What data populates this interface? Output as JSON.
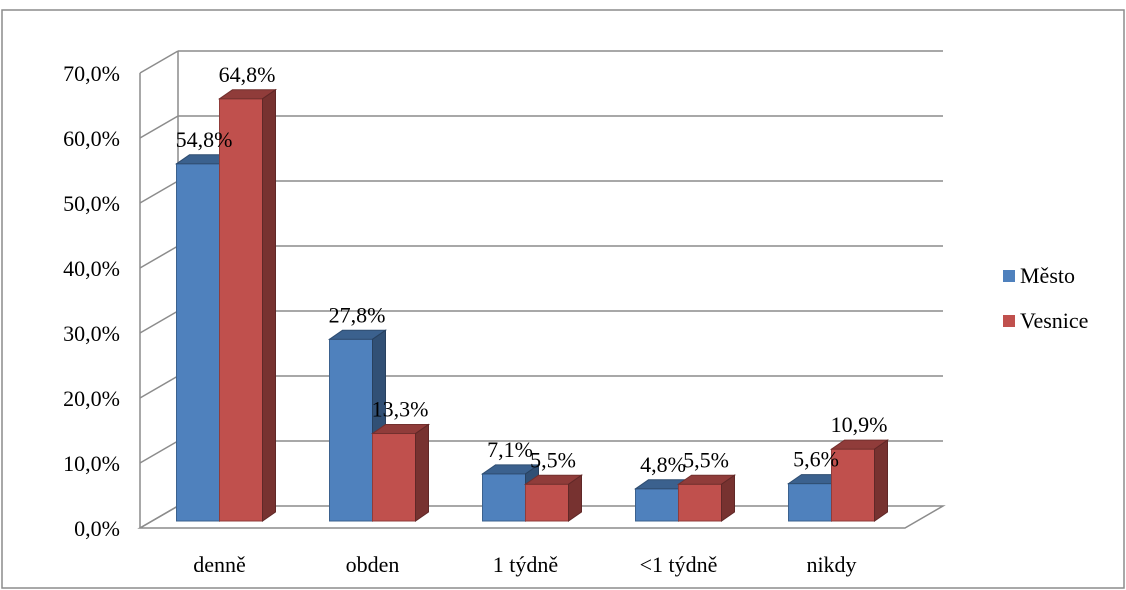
{
  "chart_data": {
    "type": "bar",
    "style": "3d-clustered-column",
    "categories": [
      "denně",
      "obden",
      "1 týdně",
      "<1 týdně",
      "nikdy"
    ],
    "series": [
      {
        "name": "Město",
        "color": "#4F81BD",
        "values": [
          54.8,
          27.8,
          7.1,
          4.8,
          5.6
        ],
        "labels": [
          "54,8%",
          "27,8%",
          "7,1%",
          "4,8%",
          "5,6%"
        ]
      },
      {
        "name": "Vesnice",
        "color": "#C0504D",
        "values": [
          64.8,
          13.3,
          5.5,
          5.5,
          10.9
        ],
        "labels": [
          "64,8%",
          "13,3%",
          "5,5%",
          "5,5%",
          "10,9%"
        ]
      }
    ],
    "y_ticks": [
      "0,0%",
      "10,0%",
      "20,0%",
      "30,0%",
      "40,0%",
      "50,0%",
      "60,0%",
      "70,0%"
    ],
    "ylim": [
      0,
      70
    ],
    "grid": true,
    "legend_position": "right"
  }
}
